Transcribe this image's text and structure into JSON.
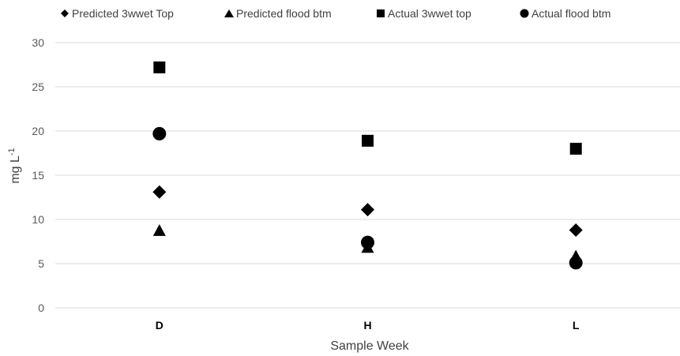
{
  "chart_data": {
    "type": "scatter",
    "categories": [
      "D",
      "H",
      "L"
    ],
    "series": [
      {
        "name": "Predicted 3wwet Top",
        "marker": "diamond",
        "values": [
          13.1,
          11.1,
          8.8
        ]
      },
      {
        "name": "Predicted flood btm",
        "marker": "triangle",
        "values": [
          8.7,
          6.8,
          5.8
        ]
      },
      {
        "name": "Actual 3wwet top",
        "marker": "square",
        "values": [
          27.2,
          18.9,
          18.0
        ]
      },
      {
        "name": "Actual flood btm",
        "marker": "circle",
        "values": [
          19.7,
          7.4,
          5.1
        ]
      }
    ],
    "xlabel": "Sample Week",
    "ylabel": "mg L",
    "ylabel_superscript": "-1",
    "ylim": [
      0,
      30
    ],
    "yticks": [
      0,
      5,
      10,
      15,
      20,
      25,
      30
    ],
    "ytick_labels": [
      "0",
      "5",
      "10",
      "15",
      "20",
      "25",
      "30"
    ],
    "grid": true,
    "legend_position": "top",
    "marker_color": "#000000",
    "grid_color": "#d9d9d9"
  }
}
